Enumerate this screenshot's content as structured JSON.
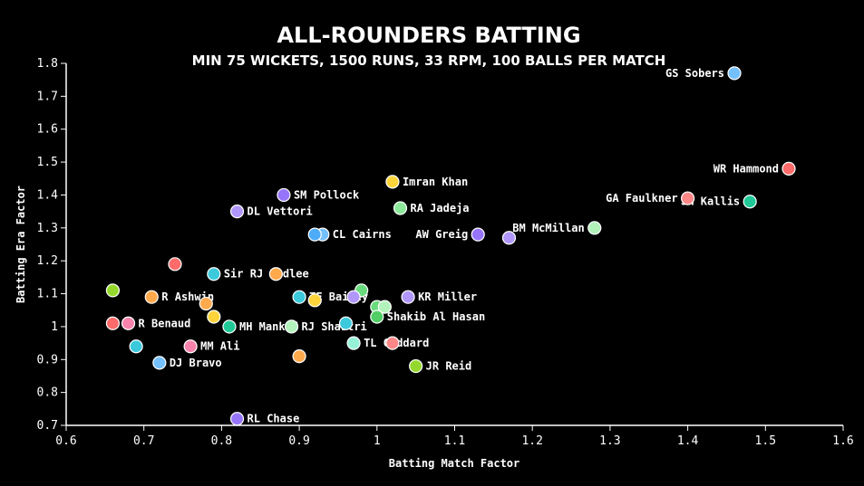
{
  "chart_data": {
    "type": "scatter",
    "title": "ALL-ROUNDERS BATTING",
    "subtitle": "MIN 75 WICKETS, 1500 RUNS, 33 RPM, 100 BALLS PER MATCH",
    "xlabel": "Batting Match Factor",
    "ylabel": "Batting Era Factor",
    "xlim": [
      0.6,
      1.6
    ],
    "ylim": [
      0.7,
      1.8
    ],
    "xticks": [
      "0.6",
      "0.7",
      "0.8",
      "0.9",
      "1",
      "1.1",
      "1.2",
      "1.3",
      "1.4",
      "1.5",
      "1.6"
    ],
    "yticks": [
      "0.7",
      "0.8",
      "0.9",
      "1",
      "1.1",
      "1.2",
      "1.3",
      "1.4",
      "1.5",
      "1.6",
      "1.7",
      "1.8"
    ],
    "grid": false,
    "points": [
      {
        "x": 1.46,
        "y": 1.77,
        "label": "GS Sobers",
        "color": "#74c0fc",
        "side": "left"
      },
      {
        "x": 1.53,
        "y": 1.48,
        "label": "WR Hammond",
        "color": "#ff6b6b",
        "side": "left"
      },
      {
        "x": 1.48,
        "y": 1.38,
        "label": "JH Kallis",
        "color": "#20c997",
        "side": "left"
      },
      {
        "x": 1.4,
        "y": 1.39,
        "label": "GA Faulkner",
        "color": "#ff8787",
        "side": "left"
      },
      {
        "x": 1.28,
        "y": 1.3,
        "label": "BM McMillan",
        "color": "#b2f2bb",
        "side": "left"
      },
      {
        "x": 1.17,
        "y": 1.27,
        "label": "",
        "color": "#b197fc",
        "side": "right"
      },
      {
        "x": 1.13,
        "y": 1.28,
        "label": "AW Greig",
        "color": "#9775fa",
        "side": "left"
      },
      {
        "x": 1.02,
        "y": 1.44,
        "label": "Imran Khan",
        "color": "#ffd43b",
        "side": "right"
      },
      {
        "x": 1.03,
        "y": 1.36,
        "label": "RA Jadeja",
        "color": "#8ce99a",
        "side": "right"
      },
      {
        "x": 0.88,
        "y": 1.4,
        "label": "SM Pollock",
        "color": "#9775fa",
        "side": "right"
      },
      {
        "x": 0.82,
        "y": 1.35,
        "label": "DL Vettori",
        "color": "#b197fc",
        "side": "right"
      },
      {
        "x": 0.93,
        "y": 1.28,
        "label": "CL Cairns",
        "color": "#74c0fc",
        "side": "right"
      },
      {
        "x": 0.92,
        "y": 1.28,
        "label": "",
        "color": "#4dabf7",
        "side": "right"
      },
      {
        "x": 0.74,
        "y": 1.19,
        "label": "",
        "color": "#ff6b6b",
        "side": "right"
      },
      {
        "x": 0.79,
        "y": 1.16,
        "label": "Sir RJ Hadlee",
        "color": "#3bc9db",
        "side": "right"
      },
      {
        "x": 0.87,
        "y": 1.16,
        "label": "",
        "color": "#ffa94d",
        "side": "right"
      },
      {
        "x": 0.66,
        "y": 1.11,
        "label": "",
        "color": "#94d82d",
        "side": "right"
      },
      {
        "x": 0.71,
        "y": 1.09,
        "label": "R Ashwin",
        "color": "#ffa94d",
        "side": "right"
      },
      {
        "x": 0.9,
        "y": 1.09,
        "label": "TE Bailey",
        "color": "#3bc9db",
        "side": "right"
      },
      {
        "x": 0.92,
        "y": 1.08,
        "label": "",
        "color": "#ffd43b",
        "side": "right"
      },
      {
        "x": 0.98,
        "y": 1.11,
        "label": "",
        "color": "#69db7c",
        "side": "right"
      },
      {
        "x": 0.97,
        "y": 1.09,
        "label": "",
        "color": "#b197fc",
        "side": "right"
      },
      {
        "x": 1.04,
        "y": 1.09,
        "label": "KR Miller",
        "color": "#b197fc",
        "side": "right"
      },
      {
        "x": 1.0,
        "y": 1.06,
        "label": "",
        "color": "#69db7c",
        "side": "right"
      },
      {
        "x": 1.01,
        "y": 1.06,
        "label": "",
        "color": "#b2f2bb",
        "side": "right"
      },
      {
        "x": 1.0,
        "y": 1.03,
        "label": "Shakib Al Hasan",
        "color": "#51cf66",
        "side": "right"
      },
      {
        "x": 0.78,
        "y": 1.07,
        "label": "",
        "color": "#ffa94d",
        "side": "right"
      },
      {
        "x": 0.79,
        "y": 1.03,
        "label": "",
        "color": "#ffd43b",
        "side": "right"
      },
      {
        "x": 0.66,
        "y": 1.01,
        "label": "",
        "color": "#ff6b6b",
        "side": "right"
      },
      {
        "x": 0.68,
        "y": 1.01,
        "label": "R Benaud",
        "color": "#f783ac",
        "side": "right"
      },
      {
        "x": 0.81,
        "y": 1.0,
        "label": "MH Mankad",
        "color": "#20c997",
        "side": "right"
      },
      {
        "x": 0.89,
        "y": 1.0,
        "label": "RJ Shastri",
        "color": "#b2f2bb",
        "side": "right"
      },
      {
        "x": 0.96,
        "y": 1.01,
        "label": "",
        "color": "#3bc9db",
        "side": "right"
      },
      {
        "x": 0.69,
        "y": 0.94,
        "label": "",
        "color": "#3bc9db",
        "side": "right"
      },
      {
        "x": 0.76,
        "y": 0.94,
        "label": "MM Ali",
        "color": "#f783ac",
        "side": "right"
      },
      {
        "x": 0.97,
        "y": 0.95,
        "label": "TL Goddard",
        "color": "#96f2d7",
        "side": "right"
      },
      {
        "x": 1.02,
        "y": 0.95,
        "label": "",
        "color": "#ff8787",
        "side": "right"
      },
      {
        "x": 0.72,
        "y": 0.89,
        "label": "DJ Bravo",
        "color": "#74c0fc",
        "side": "right"
      },
      {
        "x": 0.9,
        "y": 0.91,
        "label": "",
        "color": "#ffa94d",
        "side": "right"
      },
      {
        "x": 1.05,
        "y": 0.88,
        "label": "JR Reid",
        "color": "#94d82d",
        "side": "right"
      },
      {
        "x": 0.82,
        "y": 0.72,
        "label": "RL Chase",
        "color": "#9775fa",
        "side": "right"
      }
    ]
  }
}
